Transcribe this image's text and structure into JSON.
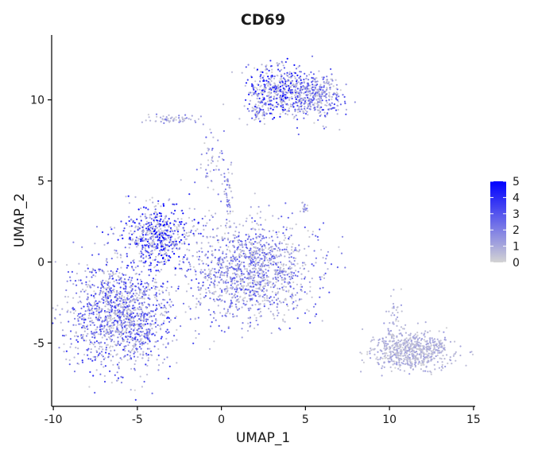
{
  "chart_data": {
    "type": "scatter",
    "title": "CD69",
    "xlabel": "UMAP_1",
    "ylabel": "UMAP_2",
    "xlim": [
      -10.1,
      15.1
    ],
    "ylim": [
      -8.9,
      14.0
    ],
    "xticks": [
      -10,
      -5,
      0,
      5,
      10,
      15
    ],
    "yticks": [
      -5,
      0,
      5,
      10
    ],
    "xtick_labels": [
      "-10",
      "-5",
      "0",
      "5",
      "10",
      "15"
    ],
    "ytick_labels": [
      "-5",
      "0",
      "5",
      "10"
    ],
    "grid": false,
    "legend": {
      "type": "colorbar",
      "position": "right",
      "min": 0,
      "max": 5,
      "ticks": [
        0,
        1,
        2,
        3,
        4,
        5
      ],
      "labels": [
        "0",
        "1",
        "2",
        "3",
        "4",
        "5"
      ],
      "color_low": "#d3d3d3",
      "color_high": "#0000ff"
    },
    "point_color_low": "#d3d3d3",
    "point_color_high": "#0000ff",
    "clusters": [
      {
        "name": "left-lower-cluster",
        "center": [
          -6.0,
          -3.3
        ],
        "spread": [
          1.6,
          1.7
        ],
        "count": 1400,
        "expression": 0.55
      },
      {
        "name": "left-upper-cluster",
        "center": [
          -3.8,
          1.7
        ],
        "spread": [
          1.0,
          0.9
        ],
        "count": 550,
        "expression": 0.75
      },
      {
        "name": "center-cluster",
        "center": [
          1.8,
          -0.5
        ],
        "spread": [
          1.8,
          1.5
        ],
        "count": 1300,
        "expression": 0.45
      },
      {
        "name": "top-right-cluster-a",
        "center": [
          3.3,
          10.6
        ],
        "spread": [
          0.9,
          0.8
        ],
        "count": 450,
        "expression": 0.7
      },
      {
        "name": "top-right-cluster-b",
        "center": [
          5.6,
          10.1
        ],
        "spread": [
          0.8,
          0.7
        ],
        "count": 380,
        "expression": 0.5
      },
      {
        "name": "top-right-satellite",
        "center": [
          2.2,
          9.2
        ],
        "spread": [
          0.25,
          0.25
        ],
        "count": 40,
        "expression": 0.6
      },
      {
        "name": "bottom-right-cluster",
        "center": [
          11.3,
          -5.5
        ],
        "spread": [
          1.2,
          0.55
        ],
        "count": 650,
        "expression": 0.2
      },
      {
        "name": "bottom-right-tail",
        "center": [
          10.3,
          -3.5
        ],
        "spread": [
          0.25,
          0.8
        ],
        "count": 40,
        "expression": 0.2
      },
      {
        "name": "small-island",
        "center": [
          4.9,
          3.3
        ],
        "spread": [
          0.12,
          0.2
        ],
        "count": 15,
        "expression": 0.4
      },
      {
        "name": "strand-top",
        "center": [
          -2.9,
          8.8
        ],
        "spread": [
          0.7,
          0.15
        ],
        "count": 60,
        "expression": 0.3
      },
      {
        "name": "strand-mid",
        "center": [
          -0.6,
          6.4
        ],
        "spread": [
          0.35,
          1.0
        ],
        "count": 50,
        "expression": 0.4
      },
      {
        "name": "strand-bottom",
        "center": [
          0.4,
          4.3
        ],
        "spread": [
          0.15,
          1.2
        ],
        "count": 45,
        "expression": 0.4
      }
    ]
  }
}
